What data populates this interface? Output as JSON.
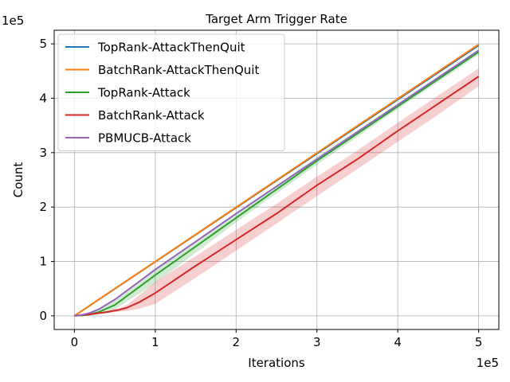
{
  "chart_data": {
    "type": "line",
    "title": "Target Arm Trigger Rate",
    "xlabel": "Iterations",
    "ylabel": "Count",
    "x_multiplier_label": "1e5",
    "y_multiplier_label": "1e5",
    "xlim": [
      -0.25,
      5.25
    ],
    "ylim": [
      -0.25,
      5.25
    ],
    "xticks": [
      0,
      1,
      2,
      3,
      4,
      5
    ],
    "yticks": [
      0,
      1,
      2,
      3,
      4,
      5
    ],
    "xtick_labels": [
      "0",
      "1",
      "2",
      "3",
      "4",
      "5"
    ],
    "ytick_labels": [
      "0",
      "1",
      "2",
      "3",
      "4",
      "5"
    ],
    "grid": true,
    "legend_position": "upper-left",
    "series": [
      {
        "name": "TopRank-AttackThenQuit",
        "color": "#1f77b4",
        "x": [
          0,
          5
        ],
        "y": [
          0,
          4.97
        ]
      },
      {
        "name": "BatchRank-AttackThenQuit",
        "color": "#ff7f0e",
        "x": [
          0,
          5
        ],
        "y": [
          0,
          4.99
        ]
      },
      {
        "name": "TopRank-Attack",
        "color": "#2ca02c",
        "x": [
          0,
          0.1,
          0.2,
          0.3,
          0.5,
          1,
          2,
          3,
          4,
          5
        ],
        "y": [
          0,
          0.01,
          0.03,
          0.07,
          0.2,
          0.75,
          1.8,
          2.85,
          3.85,
          4.85
        ],
        "band_lower": [
          0,
          0.0,
          0.0,
          0.03,
          0.12,
          0.6,
          1.72,
          2.78,
          3.8,
          4.8
        ],
        "band_upper": [
          0,
          0.02,
          0.06,
          0.12,
          0.3,
          0.88,
          1.88,
          2.92,
          3.9,
          4.9
        ]
      },
      {
        "name": "BatchRank-Attack",
        "color": "#d62728",
        "x": [
          0,
          0.2,
          0.4,
          0.55,
          0.65,
          0.8,
          1,
          1.5,
          2,
          2.5,
          3,
          3.5,
          4,
          4.5,
          5
        ],
        "y": [
          0,
          0.03,
          0.07,
          0.11,
          0.15,
          0.25,
          0.42,
          0.92,
          1.4,
          1.88,
          2.4,
          2.88,
          3.4,
          3.9,
          4.4
        ],
        "band_lower": [
          0,
          0.02,
          0.05,
          0.08,
          0.09,
          0.13,
          0.22,
          0.7,
          1.2,
          1.7,
          2.2,
          2.7,
          3.2,
          3.7,
          4.22
        ],
        "band_upper": [
          0,
          0.04,
          0.09,
          0.14,
          0.2,
          0.38,
          0.62,
          1.1,
          1.58,
          2.06,
          2.56,
          3.04,
          3.55,
          4.05,
          4.55
        ]
      },
      {
        "name": "PBMUCB-Attack",
        "color": "#9467bd",
        "x": [
          0,
          0.1,
          0.2,
          0.3,
          0.5,
          1,
          2,
          3,
          4,
          5
        ],
        "y": [
          0,
          0.02,
          0.06,
          0.12,
          0.3,
          0.85,
          1.88,
          2.88,
          3.88,
          4.88
        ]
      }
    ]
  }
}
